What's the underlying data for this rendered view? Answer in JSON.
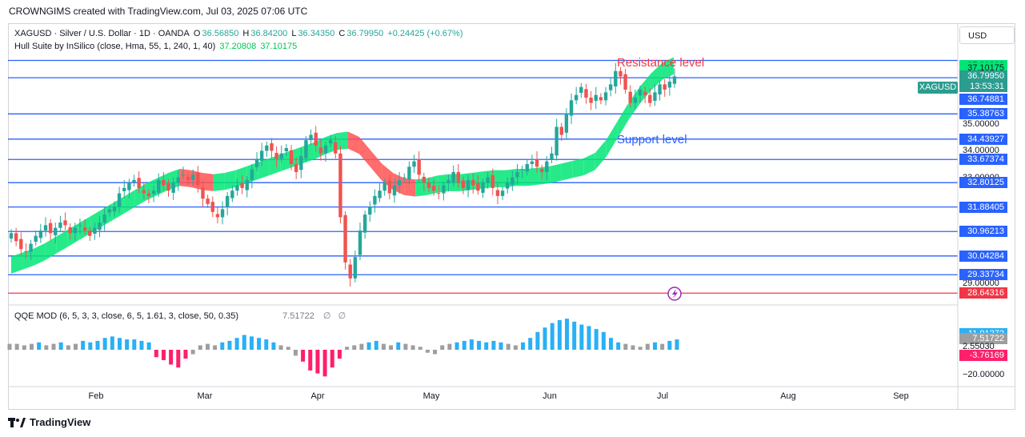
{
  "header": {
    "attribution": "CROWNGIMS created with TradingView.com, Jul 03, 2025 07:06 UTC"
  },
  "legend": {
    "symbol": "XAGUSD · Silver / U.S. Dollar · 1D · OANDA",
    "o_label": "O",
    "o": "36.56850",
    "h_label": "H",
    "h": "36.84200",
    "l_label": "L",
    "l": "36.34350",
    "c_label": "C",
    "c": "36.79950",
    "change": "+0.24425 (+0.67%)",
    "hull_label": "Hull Suite by InSilico (close, Hma, 55, 1, 240, 1, 40)",
    "hull_v1": "37.20808",
    "hull_v2": "37.10175",
    "qqe_label": "QQE MOD (6, 5, 3, 3, close, 6, 5, 1.61, 3, close, 50, 0.35)",
    "qqe_value": "7.51722",
    "qqe_sym1": "∅",
    "qqe_sym2": "∅"
  },
  "currency": "USD",
  "annotations": {
    "resistance": "Resistance level",
    "support": "Support level"
  },
  "colors": {
    "up": "#26a69a",
    "down": "#ef5350",
    "level_line": "#2962ff",
    "red_line": "#f23645",
    "hull_up": "#00e676",
    "hull_down": "#ff5252",
    "qqe_blue": "#2ab0f5",
    "qqe_red": "#ff1f6b",
    "qqe_gray": "#9e9e9e"
  },
  "price_axis": {
    "grid_labels": [
      "37.00000",
      "35.00000",
      "34.00000",
      "33.00000",
      "31.00000",
      "29.00000"
    ],
    "tags": [
      {
        "label": "37.20808",
        "color": "#00e676",
        "price": 37.20808
      },
      {
        "label": "37.10175",
        "color": "#00e676",
        "price": 37.10175
      },
      {
        "label": "36.79950",
        "color": "#2a9d8f",
        "price": 36.7995
      },
      {
        "label": "13:53:31",
        "color": "#2a9d8f",
        "price": 36.42
      },
      {
        "label": "36.74881",
        "color": "#2962ff",
        "price": 35.95
      },
      {
        "label": "35.38763",
        "color": "#2962ff",
        "price": 35.38763
      },
      {
        "label": "34.43927",
        "color": "#2962ff",
        "price": 34.43927
      },
      {
        "label": "33.67374",
        "color": "#2962ff",
        "price": 33.67374
      },
      {
        "label": "32.80125",
        "color": "#2962ff",
        "price": 32.80125
      },
      {
        "label": "31.88405",
        "color": "#2962ff",
        "price": 31.88405
      },
      {
        "label": "30.96213",
        "color": "#2962ff",
        "price": 30.96213
      },
      {
        "label": "30.04284",
        "color": "#2962ff",
        "price": 30.04284
      },
      {
        "label": "29.33734",
        "color": "#2962ff",
        "price": 29.33734
      },
      {
        "label": "28.64316",
        "color": "#f23645",
        "price": 28.64316
      }
    ],
    "symbol_tag": "XAGUSD"
  },
  "qqe_axis": {
    "tags": [
      {
        "label": "11.01272",
        "color": "#2ab0f5",
        "value": 11.01272
      },
      {
        "label": "7.51722",
        "color": "#9e9e9e",
        "value": 7.51722
      },
      {
        "label": "-3.76169",
        "color": "#ff1f6b",
        "value": -3.76169
      }
    ],
    "plain": [
      "2.55030",
      "−20.00000"
    ]
  },
  "branding": "TradingView",
  "chart_data": {
    "type": "candlestick",
    "x_ticks": [
      "Feb",
      "Mar",
      "Apr",
      "May",
      "Jun",
      "Jul",
      "Aug",
      "Sep"
    ],
    "support_resistance_levels": [
      37.4,
      36.74881,
      35.38763,
      34.43927,
      33.67374,
      32.80125,
      31.88405,
      30.96213,
      30.04284,
      29.33734
    ],
    "red_level": 28.64316,
    "price_range": [
      28.2,
      38.8
    ],
    "last": {
      "open": 36.5685,
      "high": 36.842,
      "low": 36.3435,
      "close": 36.7995
    },
    "candles_close": [
      30.9,
      30.6,
      30.3,
      30.2,
      30.5,
      30.8,
      31.0,
      31.2,
      30.9,
      31.1,
      31.3,
      31.2,
      30.9,
      31.1,
      31.2,
      31.0,
      30.8,
      31.1,
      31.3,
      31.6,
      31.8,
      31.9,
      32.4,
      32.6,
      32.8,
      32.9,
      32.6,
      32.4,
      32.3,
      32.5,
      32.9,
      32.7,
      32.5,
      32.8,
      33.0,
      33.1,
      32.9,
      33.1,
      32.7,
      32.2,
      32.0,
      31.7,
      31.5,
      31.8,
      32.3,
      32.5,
      32.7,
      32.6,
      32.9,
      33.3,
      33.7,
      34.0,
      34.2,
      34.0,
      33.7,
      33.9,
      34.1,
      33.5,
      33.2,
      33.8,
      34.4,
      34.6,
      34.2,
      33.9,
      34.2,
      34.4,
      33.9,
      31.5,
      29.8,
      29.2,
      30.0,
      31.0,
      31.6,
      31.9,
      32.3,
      32.5,
      32.8,
      32.4,
      32.7,
      32.9,
      33.0,
      33.4,
      33.6,
      33.1,
      32.8,
      32.6,
      32.5,
      32.4,
      32.7,
      32.9,
      33.2,
      32.8,
      32.6,
      32.9,
      32.7,
      32.5,
      32.8,
      33.0,
      32.6,
      32.3,
      32.5,
      32.8,
      33.0,
      33.2,
      33.3,
      33.5,
      33.6,
      33.4,
      33.2,
      33.6,
      33.9,
      34.9,
      34.6,
      35.4,
      35.9,
      36.1,
      36.4,
      36.0,
      35.8,
      36.1,
      35.9,
      36.2,
      36.5,
      37.0,
      36.8,
      36.3,
      35.8,
      36.0,
      36.3,
      36.1,
      35.8,
      36.2,
      36.5,
      36.3,
      36.6,
      36.8
    ],
    "hull": [
      29.7,
      29.85,
      30.0,
      30.2,
      30.45,
      30.7,
      30.95,
      31.2,
      31.45,
      31.7,
      31.95,
      32.2,
      32.45,
      32.65,
      32.85,
      33.0,
      32.95,
      32.85,
      32.8,
      32.85,
      32.95,
      33.1,
      33.25,
      33.4,
      33.55,
      33.7,
      33.85,
      34.0,
      34.2,
      34.35,
      34.4,
      34.2,
      33.7,
      33.2,
      32.85,
      32.65,
      32.6,
      32.65,
      32.75,
      32.8,
      32.8,
      32.85,
      32.9,
      32.95,
      32.95,
      33.0,
      33.0,
      33.05,
      33.1,
      33.2,
      33.3,
      33.4,
      33.6,
      34.1,
      34.8,
      35.5,
      36.1,
      36.6,
      37.0,
      37.2
    ],
    "qqe": [
      4,
      4,
      3,
      4,
      5,
      3,
      4,
      5,
      3,
      4,
      6,
      5,
      6,
      8,
      9,
      8,
      7,
      7,
      6,
      5,
      -5,
      -7,
      -10,
      -12,
      -6,
      -3,
      3,
      4,
      3,
      5,
      6,
      8,
      10,
      9,
      8,
      7,
      5,
      3,
      2,
      -4,
      -8,
      -14,
      -16,
      -18,
      -12,
      -6,
      2,
      3,
      4,
      5,
      6,
      4,
      3,
      5,
      4,
      3,
      2,
      -2,
      -3,
      3,
      4,
      5,
      6,
      7,
      6,
      5,
      6,
      5,
      4,
      3,
      5,
      8,
      12,
      15,
      18,
      20,
      21,
      19,
      17,
      16,
      14,
      12,
      8,
      5,
      4,
      3,
      2,
      4,
      5,
      4,
      6,
      7
    ]
  }
}
